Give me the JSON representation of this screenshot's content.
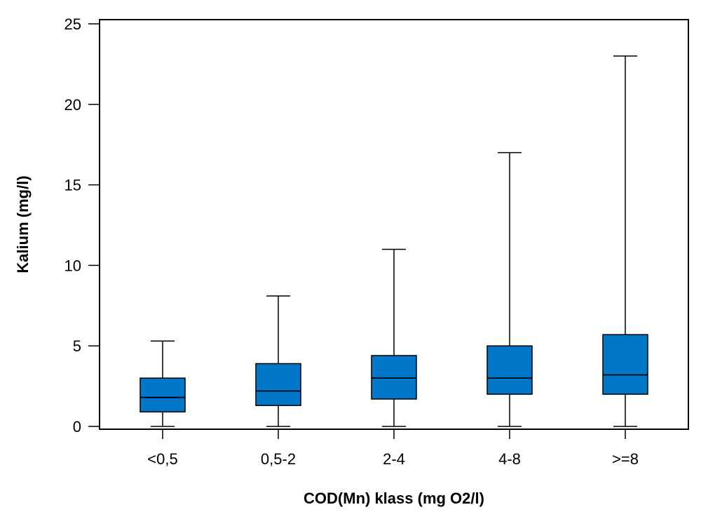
{
  "chart_data": {
    "type": "box",
    "title": "",
    "xlabel": "COD(Mn) klass (mg O2/l)",
    "ylabel": "Kalium (mg/l)",
    "ylim": [
      0,
      25
    ],
    "yticks": [
      0,
      5,
      10,
      15,
      20,
      25
    ],
    "ytick_labels": [
      "0",
      "5",
      "10",
      "15",
      "20",
      "25"
    ],
    "grid": false,
    "categories": [
      "<0,5",
      "0,5-2",
      "2-4",
      "4-8",
      ">=8"
    ],
    "boxes": [
      {
        "category": "<0,5",
        "min": 0,
        "q1": 0.9,
        "median": 1.8,
        "q3": 3.0,
        "max": 5.3
      },
      {
        "category": "0,5-2",
        "min": 0,
        "q1": 1.3,
        "median": 2.2,
        "q3": 3.9,
        "max": 8.1
      },
      {
        "category": "2-4",
        "min": 0,
        "q1": 1.7,
        "median": 3.0,
        "q3": 4.4,
        "max": 11.0
      },
      {
        "category": "4-8",
        "min": 0,
        "q1": 2.0,
        "median": 3.0,
        "q3": 5.0,
        "max": 17.0
      },
      {
        "category": ">=8",
        "min": 0,
        "q1": 2.0,
        "median": 3.2,
        "q3": 5.7,
        "max": 23.0
      }
    ],
    "colors": {
      "box_fill": "#0077c8",
      "line": "#000000",
      "background": "#ffffff"
    }
  }
}
